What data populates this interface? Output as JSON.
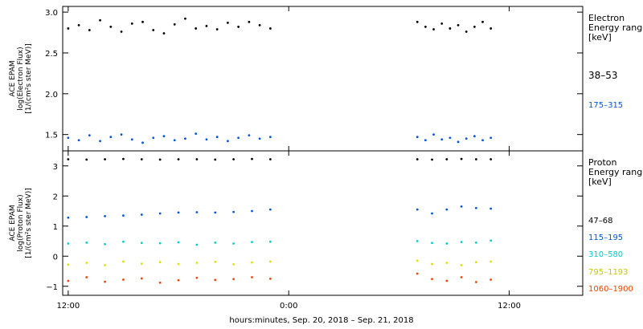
{
  "chart_data": [
    {
      "type": "scatter",
      "ylabel_lines": [
        "ACE EPAM",
        "log(Electron Flux)",
        "[1/(cm²s ster MeV)]"
      ],
      "ylim": [
        1.3,
        3.07
      ],
      "yticks": [
        1.5,
        2.0,
        2.5,
        3.0
      ],
      "ytick_labels": [
        "1.5",
        "2.0",
        "2.5",
        "3.0"
      ],
      "legend_title_lines": [
        "Electron",
        "Energy ranges",
        "[keV]"
      ],
      "series": [
        {
          "name": "38–53",
          "color": "#000000",
          "segments": [
            {
              "x_start": 0,
              "x_end": 11.0,
              "values": [
                2.8,
                2.84,
                2.78,
                2.9,
                2.82,
                2.76,
                2.86,
                2.88,
                2.78,
                2.74,
                2.85,
                2.92,
                2.8,
                2.83,
                2.79,
                2.87,
                2.82,
                2.88,
                2.84,
                2.8
              ]
            },
            {
              "x_start": 19.0,
              "x_end": 23.0,
              "values": [
                2.88,
                2.82,
                2.79,
                2.86,
                2.8,
                2.84,
                2.76,
                2.82,
                2.88,
                2.8
              ]
            }
          ]
        },
        {
          "name": "175–315",
          "color": "#0055dd",
          "segments": [
            {
              "x_start": 0,
              "x_end": 11.0,
              "values": [
                1.46,
                1.43,
                1.49,
                1.42,
                1.47,
                1.5,
                1.44,
                1.4,
                1.46,
                1.48,
                1.43,
                1.45,
                1.51,
                1.44,
                1.47,
                1.42,
                1.46,
                1.49,
                1.45,
                1.47
              ]
            },
            {
              "x_start": 19.0,
              "x_end": 23.0,
              "values": [
                1.47,
                1.43,
                1.5,
                1.44,
                1.46,
                1.41,
                1.45,
                1.48,
                1.43,
                1.46
              ]
            }
          ]
        }
      ]
    },
    {
      "type": "scatter",
      "ylabel_lines": [
        "ACE EPAM",
        "log(Proton Flux)",
        "[1/(cm²s ster MeV)]"
      ],
      "ylim": [
        -1.3,
        3.5
      ],
      "yticks": [
        -1,
        0,
        1,
        2,
        3
      ],
      "ytick_labels": [
        "−1",
        "0",
        "1",
        "2",
        "3"
      ],
      "legend_title_lines": [
        "Proton",
        "Energy ranges",
        "[keV]"
      ],
      "series": [
        {
          "name": "47–68",
          "color": "#000000",
          "segments": [
            {
              "x_start": 0,
              "x_end": 11.0,
              "values": [
                3.22,
                3.21,
                3.22,
                3.23,
                3.22,
                3.21,
                3.22,
                3.22,
                3.21,
                3.22,
                3.23,
                3.22
              ]
            },
            {
              "x_start": 19.0,
              "x_end": 23.0,
              "values": [
                3.22,
                3.21,
                3.22,
                3.23,
                3.22,
                3.22
              ]
            }
          ]
        },
        {
          "name": "115–195",
          "color": "#0055dd",
          "segments": [
            {
              "x_start": 0,
              "x_end": 11.0,
              "values": [
                1.28,
                1.3,
                1.33,
                1.35,
                1.38,
                1.42,
                1.45,
                1.46,
                1.45,
                1.47,
                1.5,
                1.55
              ]
            },
            {
              "x_start": 19.0,
              "x_end": 23.0,
              "values": [
                1.55,
                1.42,
                1.55,
                1.65,
                1.6,
                1.58
              ]
            }
          ]
        },
        {
          "name": "310–580",
          "color": "#00cccc",
          "segments": [
            {
              "x_start": 0,
              "x_end": 11.0,
              "values": [
                0.42,
                0.45,
                0.4,
                0.48,
                0.44,
                0.43,
                0.46,
                0.38,
                0.45,
                0.42,
                0.47,
                0.48
              ]
            },
            {
              "x_start": 19.0,
              "x_end": 23.0,
              "values": [
                0.5,
                0.44,
                0.42,
                0.47,
                0.45,
                0.52
              ]
            }
          ]
        },
        {
          "name": "795–1193",
          "color": "#d9e000",
          "segments": [
            {
              "x_start": 0,
              "x_end": 11.0,
              "values": [
                -0.28,
                -0.22,
                -0.3,
                -0.18,
                -0.25,
                -0.2,
                -0.26,
                -0.22,
                -0.19,
                -0.27,
                -0.21,
                -0.18
              ]
            },
            {
              "x_start": 19.0,
              "x_end": 23.0,
              "values": [
                -0.15,
                -0.26,
                -0.22,
                -0.3,
                -0.2,
                -0.18
              ]
            }
          ]
        },
        {
          "name": "1060–1900",
          "color": "#ee4400",
          "segments": [
            {
              "x_start": 0,
              "x_end": 11.0,
              "values": [
                -0.82,
                -0.7,
                -0.85,
                -0.78,
                -0.74,
                -0.88,
                -0.8,
                -0.72,
                -0.79,
                -0.76,
                -0.7,
                -0.75
              ]
            },
            {
              "x_start": 19.0,
              "x_end": 23.0,
              "values": [
                -0.58,
                -0.76,
                -0.82,
                -0.7,
                -0.86,
                -0.78
              ]
            }
          ]
        }
      ]
    }
  ],
  "x_axis": {
    "range_hours": [
      -0.3,
      28
    ],
    "ticks_hours": [
      0,
      12,
      24
    ],
    "tick_labels": [
      "12:00",
      "0:00",
      "12:00"
    ],
    "label": "hours:minutes, Sep. 20, 2018 – Sep. 21, 2018"
  }
}
